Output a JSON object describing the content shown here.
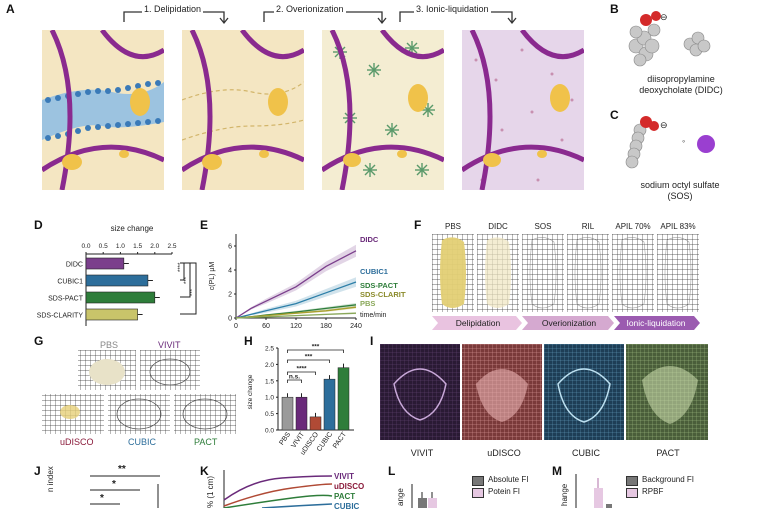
{
  "panels": {
    "a": {
      "label": "A",
      "steps": [
        "1. Delipidation",
        "2. Overionization",
        "3. Ionic-liquidation"
      ]
    },
    "b": {
      "label": "B",
      "charge": "⊖",
      "compound": "diisopropylamine",
      "compound2": "deoxycholate (DIDC)"
    },
    "c": {
      "label": "C",
      "charge": "⊖",
      "dot": "◦",
      "compound": "sodium octyl sulfate",
      "compound2": "(SOS)"
    },
    "d": {
      "label": "D",
      "title": "size change",
      "colors": {
        "DIDC": "#7b3f8c",
        "CUBIC1": "#2d6e9b",
        "SDS-PACT": "#2e7d3a",
        "SDS-CLARITY": "#c9c46a"
      },
      "sig": [
        "****",
        "***",
        "***"
      ]
    },
    "e": {
      "label": "E",
      "ylabel": "c(PL) µM",
      "xlabel": "time/min",
      "series_labels": [
        "DIDC",
        "CUBIC1",
        "SDS-PACT",
        "SDS-CLARITY",
        "PBS"
      ]
    },
    "f": {
      "label": "F",
      "columns": [
        "PBS",
        "DIDC",
        "SOS",
        "RIL",
        "APIL 70%",
        "APIL 83%"
      ],
      "arrows": [
        "Delipidation",
        "Overionization",
        "Ionic-liquidation"
      ]
    },
    "g": {
      "label": "G",
      "labels": [
        "PBS",
        "VIVIT",
        "uDISCO",
        "CUBIC",
        "PACT"
      ]
    },
    "h": {
      "label": "H",
      "ylabel": "size change",
      "sig": [
        "n.s.",
        "****",
        "***",
        "***"
      ]
    },
    "i": {
      "label": "I",
      "labels": [
        "VIVIT",
        "uDISCO",
        "CUBIC",
        "PACT"
      ]
    },
    "j": {
      "label": "J",
      "ylabel": "n index",
      "sig": [
        "**",
        "*",
        "*"
      ]
    },
    "k": {
      "label": "K",
      "ylabel": "% (1 cm)",
      "series": [
        "VIVIT",
        "uDISCO",
        "PACT",
        "CUBIC"
      ]
    },
    "l": {
      "label": "L",
      "ylabel": "ange",
      "legend": [
        "Absolute FI",
        "Potein FI"
      ]
    },
    "m": {
      "label": "M",
      "ylabel": "hange",
      "legend": [
        "Background FI",
        "RPBF"
      ]
    }
  },
  "chart_data": [
    {
      "type": "bar",
      "title": "size change",
      "categories": [
        "DIDC",
        "CUBIC1",
        "SDS-PACT",
        "SDS-CLARITY"
      ],
      "values": [
        1.1,
        1.8,
        2.0,
        1.5
      ],
      "orientation": "horizontal",
      "xticks": [
        "0.0",
        "0.5",
        "1.0",
        "1.5",
        "2.0",
        "2.5"
      ],
      "xlim": [
        0,
        2.5
      ]
    },
    {
      "type": "line",
      "ylabel": "c(PL) µM",
      "xlabel": "time/min",
      "x": [
        0,
        30,
        60,
        120,
        180,
        240
      ],
      "xticks": [
        "0",
        "60",
        "120",
        "180",
        "240"
      ],
      "yticks": [
        "0",
        "2",
        "4",
        "6"
      ],
      "ylim": [
        0,
        7
      ],
      "series": [
        {
          "name": "DIDC",
          "values": [
            0,
            0.8,
            1.4,
            2.6,
            4.3,
            5.6
          ],
          "color": "#7b3f8c"
        },
        {
          "name": "CUBIC1",
          "values": [
            0,
            0.3,
            0.6,
            1.2,
            2.1,
            3.0
          ],
          "color": "#2d7fa8"
        },
        {
          "name": "SDS-PACT",
          "values": [
            0,
            0.1,
            0.25,
            0.5,
            0.8,
            1.1
          ],
          "color": "#2e7d3a"
        },
        {
          "name": "SDS-CLARITY",
          "values": [
            0,
            0.1,
            0.2,
            0.4,
            0.6,
            0.9
          ],
          "color": "#a89f2e"
        },
        {
          "name": "PBS",
          "values": [
            0,
            0.05,
            0.1,
            0.2,
            0.3,
            0.4
          ],
          "color": "#8aa85a"
        }
      ]
    },
    {
      "type": "bar",
      "ylabel": "size change",
      "categories": [
        "PBS",
        "VIVIT",
        "uDISCO",
        "CUBIC",
        "PACT"
      ],
      "values": [
        1.0,
        1.0,
        0.4,
        1.55,
        1.9
      ],
      "colors": [
        "#9a9a9a",
        "#6a2a7a",
        "#b04a35",
        "#2d6e9b",
        "#2e7d3a"
      ],
      "yticks": [
        "0.0",
        "0.5",
        "1.0",
        "1.5",
        "2.0",
        "2.5"
      ],
      "ylim": [
        0,
        2.5
      ]
    }
  ]
}
